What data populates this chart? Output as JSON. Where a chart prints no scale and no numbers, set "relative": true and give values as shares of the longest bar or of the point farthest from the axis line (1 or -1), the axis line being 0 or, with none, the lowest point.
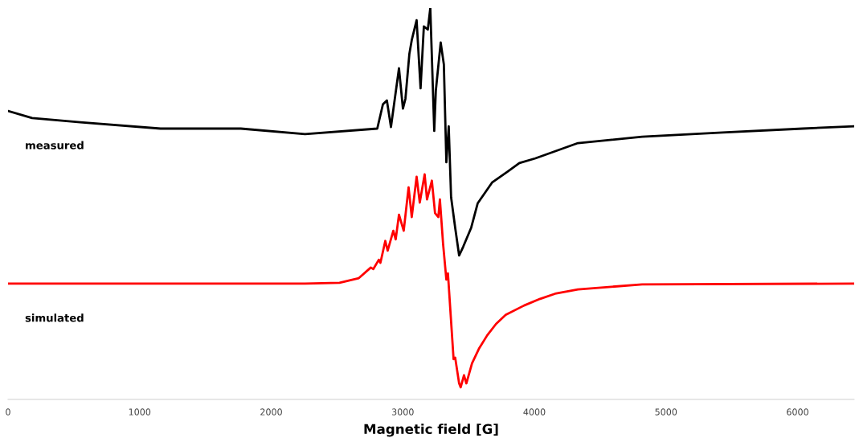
{
  "chart_data": {
    "type": "line",
    "relative": true,
    "xlabel": "Magnetic field [G]",
    "xlim": [
      0,
      6430
    ],
    "xticks": [
      0,
      1000,
      2000,
      3000,
      4000,
      5000,
      6000
    ],
    "grid": false,
    "legend": false,
    "marker": "none",
    "line_style": "solid",
    "series": [
      {
        "name": "measured",
        "color": "#000000",
        "x": [
          0,
          183,
          549,
          1159,
          1769,
          2257,
          2806,
          2849,
          2879,
          2910,
          2971,
          3001,
          3020,
          3050,
          3068,
          3105,
          3135,
          3160,
          3190,
          3209,
          3239,
          3251,
          3288,
          3312,
          3331,
          3349,
          3367,
          3398,
          3428,
          3459,
          3520,
          3569,
          3678,
          3800,
          3886,
          4008,
          4331,
          4819,
          5429,
          6039,
          6429
        ],
        "values": [
          0.737,
          0.719,
          0.708,
          0.692,
          0.692,
          0.678,
          0.692,
          0.754,
          0.764,
          0.696,
          0.846,
          0.743,
          0.768,
          0.883,
          0.918,
          0.969,
          0.795,
          0.953,
          0.945,
          1.0,
          0.686,
          0.789,
          0.912,
          0.856,
          0.606,
          0.698,
          0.517,
          0.439,
          0.368,
          0.39,
          0.439,
          0.501,
          0.554,
          0.583,
          0.604,
          0.616,
          0.655,
          0.671,
          0.682,
          0.692,
          0.698
        ]
      },
      {
        "name": "simulated",
        "color": "#ff0000",
        "x": [
          0,
          2257,
          2519,
          2666,
          2757,
          2776,
          2818,
          2830,
          2867,
          2885,
          2928,
          2946,
          2971,
          3007,
          3044,
          3068,
          3105,
          3129,
          3166,
          3184,
          3221,
          3245,
          3270,
          3282,
          3306,
          3331,
          3343,
          3386,
          3398,
          3428,
          3440,
          3465,
          3483,
          3526,
          3581,
          3642,
          3709,
          3782,
          3922,
          4044,
          4166,
          4331,
          4819,
          6429
        ],
        "values": [
          0.296,
          0.296,
          0.298,
          0.31,
          0.337,
          0.333,
          0.357,
          0.349,
          0.405,
          0.38,
          0.431,
          0.409,
          0.472,
          0.431,
          0.542,
          0.466,
          0.569,
          0.503,
          0.575,
          0.511,
          0.559,
          0.476,
          0.466,
          0.511,
          0.398,
          0.306,
          0.322,
          0.103,
          0.107,
          0.041,
          0.031,
          0.062,
          0.041,
          0.092,
          0.131,
          0.164,
          0.193,
          0.216,
          0.24,
          0.257,
          0.271,
          0.281,
          0.294,
          0.296
        ]
      }
    ]
  }
}
